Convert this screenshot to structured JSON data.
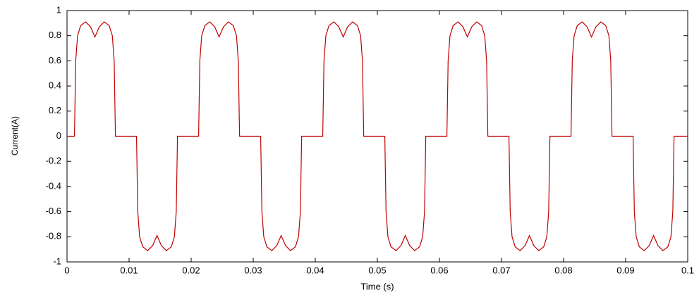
{
  "chart_data": {
    "type": "line",
    "xlabel": "Time (s)",
    "ylabel": "Current(A)",
    "x": [
      0,
      0.0012,
      0.0014,
      0.0017,
      0.0022,
      0.003,
      0.0038,
      0.0045,
      0.0052,
      0.006,
      0.0068,
      0.0073,
      0.0076,
      0.0078,
      0.0112,
      0.0114,
      0.0117,
      0.0122,
      0.013,
      0.0138,
      0.0145,
      0.0152,
      0.016,
      0.0168,
      0.0173,
      0.0176,
      0.0178,
      0.0212,
      0.0214,
      0.0217,
      0.0222,
      0.023,
      0.0238,
      0.0245,
      0.0252,
      0.026,
      0.0268,
      0.0273,
      0.0276,
      0.0278,
      0.0312,
      0.0314,
      0.0317,
      0.0322,
      0.033,
      0.0338,
      0.0345,
      0.0352,
      0.036,
      0.0368,
      0.0373,
      0.0376,
      0.0378,
      0.0412,
      0.0414,
      0.0417,
      0.0422,
      0.043,
      0.0438,
      0.0445,
      0.0452,
      0.046,
      0.0468,
      0.0473,
      0.0476,
      0.0478,
      0.0512,
      0.0514,
      0.0517,
      0.0522,
      0.053,
      0.0538,
      0.0545,
      0.0552,
      0.056,
      0.0568,
      0.0573,
      0.0576,
      0.0578,
      0.0612,
      0.0614,
      0.0617,
      0.0622,
      0.063,
      0.0638,
      0.0645,
      0.0652,
      0.066,
      0.0668,
      0.0673,
      0.0676,
      0.0678,
      0.0712,
      0.0714,
      0.0717,
      0.0722,
      0.073,
      0.0738,
      0.0745,
      0.0752,
      0.076,
      0.0768,
      0.0773,
      0.0776,
      0.0778,
      0.0812,
      0.0814,
      0.0817,
      0.0822,
      0.083,
      0.0838,
      0.0845,
      0.0852,
      0.086,
      0.0868,
      0.0873,
      0.0876,
      0.0878,
      0.0912,
      0.0914,
      0.0917,
      0.0922,
      0.093,
      0.0938,
      0.0945,
      0.0952,
      0.096,
      0.0968,
      0.0973,
      0.0976,
      0.0978,
      0.1
    ],
    "series": [
      {
        "color": "#c00000",
        "values": [
          0,
          0,
          0.6,
          0.8,
          0.88,
          0.91,
          0.87,
          0.79,
          0.87,
          0.91,
          0.88,
          0.8,
          0.6,
          0,
          0,
          -0.6,
          -0.8,
          -0.88,
          -0.91,
          -0.87,
          -0.79,
          -0.87,
          -0.91,
          -0.88,
          -0.8,
          -0.6,
          0,
          0,
          0.6,
          0.8,
          0.88,
          0.91,
          0.87,
          0.79,
          0.87,
          0.91,
          0.88,
          0.8,
          0.6,
          0,
          0,
          -0.6,
          -0.8,
          -0.88,
          -0.91,
          -0.87,
          -0.79,
          -0.87,
          -0.91,
          -0.88,
          -0.8,
          -0.6,
          0,
          0,
          0.6,
          0.8,
          0.88,
          0.91,
          0.87,
          0.79,
          0.87,
          0.91,
          0.88,
          0.8,
          0.6,
          0,
          0,
          -0.6,
          -0.8,
          -0.88,
          -0.91,
          -0.87,
          -0.79,
          -0.87,
          -0.91,
          -0.88,
          -0.8,
          -0.6,
          0,
          0,
          0.6,
          0.8,
          0.88,
          0.91,
          0.87,
          0.79,
          0.87,
          0.91,
          0.88,
          0.8,
          0.6,
          0,
          0,
          -0.6,
          -0.8,
          -0.88,
          -0.91,
          -0.87,
          -0.79,
          -0.87,
          -0.91,
          -0.88,
          -0.8,
          -0.6,
          0,
          0,
          0.6,
          0.8,
          0.88,
          0.91,
          0.87,
          0.79,
          0.87,
          0.91,
          0.88,
          0.8,
          0.6,
          0,
          0,
          -0.6,
          -0.8,
          -0.88,
          -0.91,
          -0.87,
          -0.79,
          -0.87,
          -0.91,
          -0.88,
          -0.8,
          -0.6,
          0,
          0
        ]
      }
    ],
    "xlim": [
      0,
      0.1
    ],
    "xticks": [
      0,
      0.01,
      0.02,
      0.03,
      0.04,
      0.05,
      0.06,
      0.07,
      0.08,
      0.09,
      0.1
    ],
    "ylim": [
      -1,
      1
    ],
    "yticks": [
      -1,
      -0.8,
      -0.6,
      -0.4,
      -0.2,
      0,
      0.2,
      0.4,
      0.6,
      0.8,
      1
    ],
    "grid": false
  }
}
